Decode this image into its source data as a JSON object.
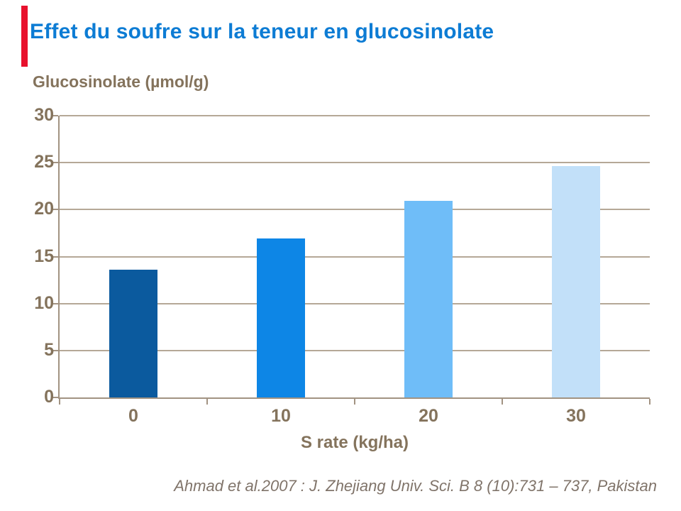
{
  "slide": {
    "title": "Effet du soufre sur la teneur en glucosinolate",
    "title_color": "#0D7CD4",
    "accent_color": "#E8112D",
    "citation": "Ahmad et al.2007 : J. Zhejiang Univ. Sci. B 8 (10):731 – 737, Pakistan",
    "citation_color": "#80746A"
  },
  "chart_data": {
    "type": "bar",
    "title": "",
    "ylabel": "Glucosinolate (µmol/g)",
    "xlabel": "S rate (kg/ha)",
    "categories": [
      "0",
      "10",
      "20",
      "30"
    ],
    "values": [
      13.6,
      16.9,
      20.9,
      24.6
    ],
    "bar_colors": [
      "#0B5A9E",
      "#0D86E6",
      "#6FBDF8",
      "#C2E0F9"
    ],
    "ylim": [
      0,
      30
    ],
    "yticks": [
      30,
      25,
      20,
      15,
      10,
      5,
      0
    ],
    "grid": true,
    "legend": "none",
    "label_color": "#84735C",
    "grid_color": "#B5A897",
    "axis_color": "#A29382"
  }
}
